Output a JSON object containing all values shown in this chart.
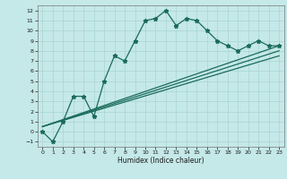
{
  "xlabel": "Humidex (Indice chaleur)",
  "bg_color": "#c5e8e8",
  "line_color": "#1a6b5a",
  "grid_color": "#a8d4d4",
  "xlim": [
    -0.5,
    23.5
  ],
  "ylim": [
    -1.5,
    12.5
  ],
  "xticks": [
    0,
    1,
    2,
    3,
    4,
    5,
    6,
    7,
    8,
    9,
    10,
    11,
    12,
    13,
    14,
    15,
    16,
    17,
    18,
    19,
    20,
    21,
    22,
    23
  ],
  "yticks": [
    -1,
    0,
    1,
    2,
    3,
    4,
    5,
    6,
    7,
    8,
    9,
    10,
    11,
    12
  ],
  "line1_x": [
    0,
    1,
    2,
    3,
    4,
    5,
    6,
    7,
    8,
    9,
    10,
    11,
    12,
    13,
    14,
    15,
    16,
    17,
    18,
    19,
    20,
    21,
    22,
    23
  ],
  "line1_y": [
    0,
    -1,
    1,
    3.5,
    3.5,
    1.5,
    5.0,
    7.5,
    7.0,
    9.0,
    11.0,
    11.2,
    12.0,
    10.5,
    11.2,
    11.0,
    10.0,
    9.0,
    8.5,
    8.0,
    8.5,
    9.0,
    8.5,
    8.5
  ],
  "line2_x": [
    0,
    23
  ],
  "line2_y": [
    0.5,
    8.5
  ],
  "line3_x": [
    0,
    23
  ],
  "line3_y": [
    0.5,
    8.0
  ],
  "line4_x": [
    0,
    23
  ],
  "line4_y": [
    0.5,
    7.5
  ]
}
